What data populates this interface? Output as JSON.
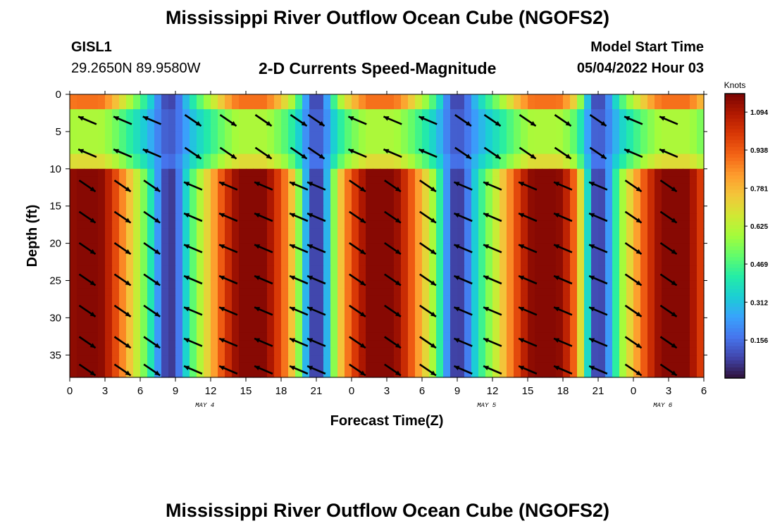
{
  "header": {
    "title": "Mississippi River Outflow Ocean Cube (NGOFS2)",
    "station_id": "GISL1",
    "coordinates": "29.2650N  89.9580W",
    "subtitle": "2-D Currents Speed-Magnitude",
    "model_start_label": "Model Start Time",
    "model_start_value": "05/04/2022 Hour 03"
  },
  "footer": {
    "title": "Mississippi River Outflow Ocean Cube (NGOFS2)"
  },
  "chart_data": {
    "type": "heatmap",
    "xlabel": "Forecast Time(Z)",
    "ylabel": "Depth (ft)",
    "x_range_hours": [
      0,
      54
    ],
    "y_range_ft": [
      0,
      38
    ],
    "y_inverted": true,
    "x_tick_labels": [
      "0",
      "3",
      "6",
      "9",
      "12",
      "15",
      "18",
      "21",
      "0",
      "3",
      "6",
      "9",
      "12",
      "15",
      "18",
      "21",
      "0",
      "3",
      "6"
    ],
    "y_tick_values": [
      0,
      5,
      10,
      15,
      20,
      25,
      30,
      35
    ],
    "y_tick_labels": [
      "0",
      "5",
      "10",
      "15",
      "20",
      "25",
      "30",
      "35"
    ],
    "date_labels": [
      {
        "hour": 11.5,
        "text": "MAY 4"
      },
      {
        "hour": 35.5,
        "text": "MAY 5"
      },
      {
        "hour": 50.5,
        "text": "MAY 6"
      }
    ],
    "colorbar": {
      "unit": "Knots",
      "range": [
        0.0,
        1.17
      ],
      "tick_values": [
        1.094,
        0.938,
        0.781,
        0.625,
        0.469,
        0.312,
        0.156
      ],
      "tick_labels": [
        "1.094",
        "0.938",
        "0.781",
        "0.625",
        "0.469",
        "0.312",
        "0.156"
      ],
      "colormap": [
        "#30123b",
        "#4145ab",
        "#4675ed",
        "#39a2fc",
        "#1bcfd4",
        "#24eca6",
        "#61fc6c",
        "#a4fc3b",
        "#d1e834",
        "#f3c63a",
        "#fe9b2d",
        "#f36315",
        "#d93806",
        "#b11901",
        "#7a0403"
      ]
    },
    "speed_peak_hours": [
      1.5,
      15.5,
      26.5,
      40.5,
      51.5
    ],
    "slack_hours": [
      8.5,
      21.0,
      33.0,
      45.0
    ],
    "arrow_columns_hours": [
      1.5,
      4.5,
      7.0,
      10.5,
      13.5,
      16.5,
      19.5,
      21.0,
      24.5,
      27.5,
      30.5,
      33.5,
      36.0,
      39.0,
      42.0,
      45.0,
      48.0,
      51.0
    ],
    "arrow_rows_ft": [
      3.5,
      7.9,
      12.3,
      16.5,
      20.7,
      24.9,
      29.1,
      33.3,
      37.0
    ],
    "layers": {
      "surface_ft": [
        0,
        2
      ],
      "upper_ft": [
        2,
        8.5
      ],
      "lower_ft": [
        10.5,
        38
      ]
    }
  }
}
